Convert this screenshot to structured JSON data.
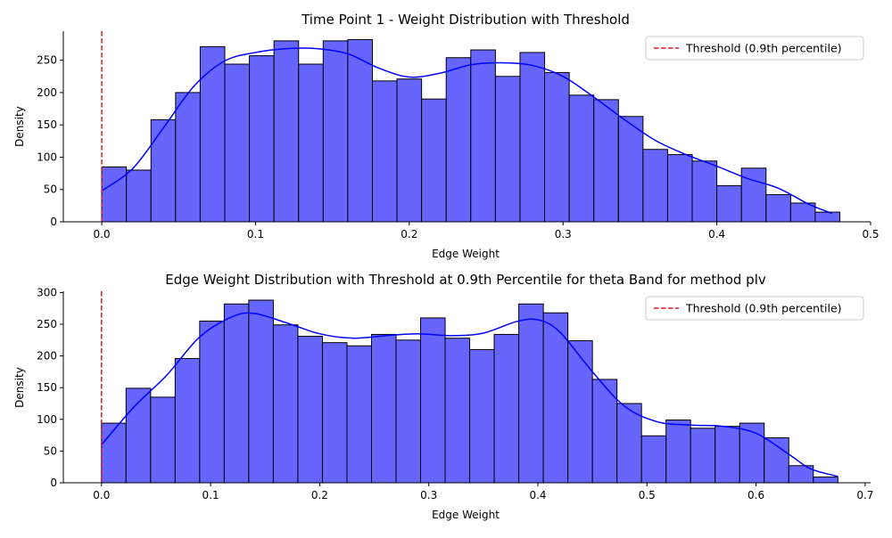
{
  "chart_data": [
    {
      "type": "bar",
      "subtype": "histogram-with-kde",
      "title": "Time Point 1 - Weight Distribution with Threshold",
      "xlabel": "Edge Weight",
      "ylabel": "Density",
      "xlim": [
        -0.025,
        0.5
      ],
      "ylim": [
        0,
        295
      ],
      "xticks": [
        "0.0",
        "0.1",
        "0.2",
        "0.3",
        "0.4",
        "0.5"
      ],
      "yticks": [
        "0",
        "50",
        "100",
        "150",
        "200",
        "250"
      ],
      "bins": {
        "edges": [
          0.0,
          0.016,
          0.032,
          0.048,
          0.064,
          0.08,
          0.096,
          0.112,
          0.128,
          0.144,
          0.16,
          0.176,
          0.192,
          0.208,
          0.224,
          0.24,
          0.256,
          0.272,
          0.288,
          0.304,
          0.32,
          0.336,
          0.352,
          0.368,
          0.384,
          0.4,
          0.416,
          0.432,
          0.448,
          0.464,
          0.48
        ],
        "values": [
          85,
          80,
          158,
          200,
          271,
          244,
          257,
          280,
          244,
          280,
          282,
          218,
          221,
          190,
          254,
          266,
          225,
          262,
          231,
          196,
          189,
          163,
          112,
          104,
          94,
          56,
          83,
          42,
          29,
          15
        ]
      },
      "kde": {
        "x": [
          0.0,
          0.02,
          0.04,
          0.06,
          0.08,
          0.1,
          0.12,
          0.14,
          0.16,
          0.18,
          0.2,
          0.22,
          0.24,
          0.26,
          0.28,
          0.3,
          0.32,
          0.34,
          0.36,
          0.38,
          0.4,
          0.42,
          0.44,
          0.46,
          0.475
        ],
        "y": [
          48,
          82,
          145,
          210,
          249,
          262,
          268,
          268,
          260,
          238,
          224,
          230,
          243,
          246,
          242,
          225,
          193,
          158,
          126,
          104,
          86,
          67,
          52,
          27,
          13
        ]
      },
      "threshold": {
        "x": 0.0,
        "label": "Threshold (0.9th percentile)",
        "color": "#e41a1c"
      },
      "bar_color": "#6666ff",
      "kde_color": "#0000ff",
      "legend_position": "upper-right",
      "grid": false
    },
    {
      "type": "bar",
      "subtype": "histogram-with-kde",
      "title": "Edge Weight Distribution with Threshold at 0.9th Percentile for theta Band for method plv",
      "xlabel": "Edge Weight",
      "ylabel": "Density",
      "xlim": [
        -0.035,
        0.705
      ],
      "ylim": [
        0,
        302
      ],
      "xticks": [
        "0.0",
        "0.1",
        "0.2",
        "0.3",
        "0.4",
        "0.5",
        "0.6",
        "0.7"
      ],
      "yticks": [
        "0",
        "50",
        "100",
        "150",
        "200",
        "250",
        "300"
      ],
      "bins": {
        "edges": [
          0.0,
          0.0225,
          0.045,
          0.0675,
          0.09,
          0.1125,
          0.135,
          0.1575,
          0.18,
          0.2025,
          0.225,
          0.2475,
          0.27,
          0.2925,
          0.315,
          0.3375,
          0.36,
          0.3825,
          0.405,
          0.4275,
          0.45,
          0.4725,
          0.495,
          0.5175,
          0.54,
          0.5625,
          0.585,
          0.6075,
          0.63,
          0.6525,
          0.675
        ],
        "values": [
          94,
          149,
          135,
          196,
          255,
          282,
          288,
          249,
          231,
          221,
          216,
          234,
          225,
          260,
          228,
          210,
          234,
          282,
          268,
          224,
          163,
          125,
          74,
          99,
          86,
          89,
          94,
          71,
          27,
          9
        ]
      },
      "kde": {
        "x": [
          0.0,
          0.03,
          0.06,
          0.09,
          0.12,
          0.14,
          0.17,
          0.2,
          0.23,
          0.26,
          0.29,
          0.32,
          0.35,
          0.38,
          0.4,
          0.42,
          0.45,
          0.48,
          0.51,
          0.54,
          0.57,
          0.6,
          0.63,
          0.65,
          0.675
        ],
        "y": [
          60,
          120,
          170,
          230,
          262,
          267,
          252,
          235,
          228,
          232,
          235,
          232,
          236,
          254,
          257,
          238,
          175,
          120,
          96,
          91,
          89,
          78,
          45,
          22,
          10
        ]
      },
      "threshold": {
        "x": 0.0,
        "label": "Threshold (0.9th percentile)",
        "color": "#e41a1c"
      },
      "bar_color": "#6666ff",
      "kde_color": "#0000ff",
      "legend_position": "upper-right",
      "grid": false
    }
  ]
}
